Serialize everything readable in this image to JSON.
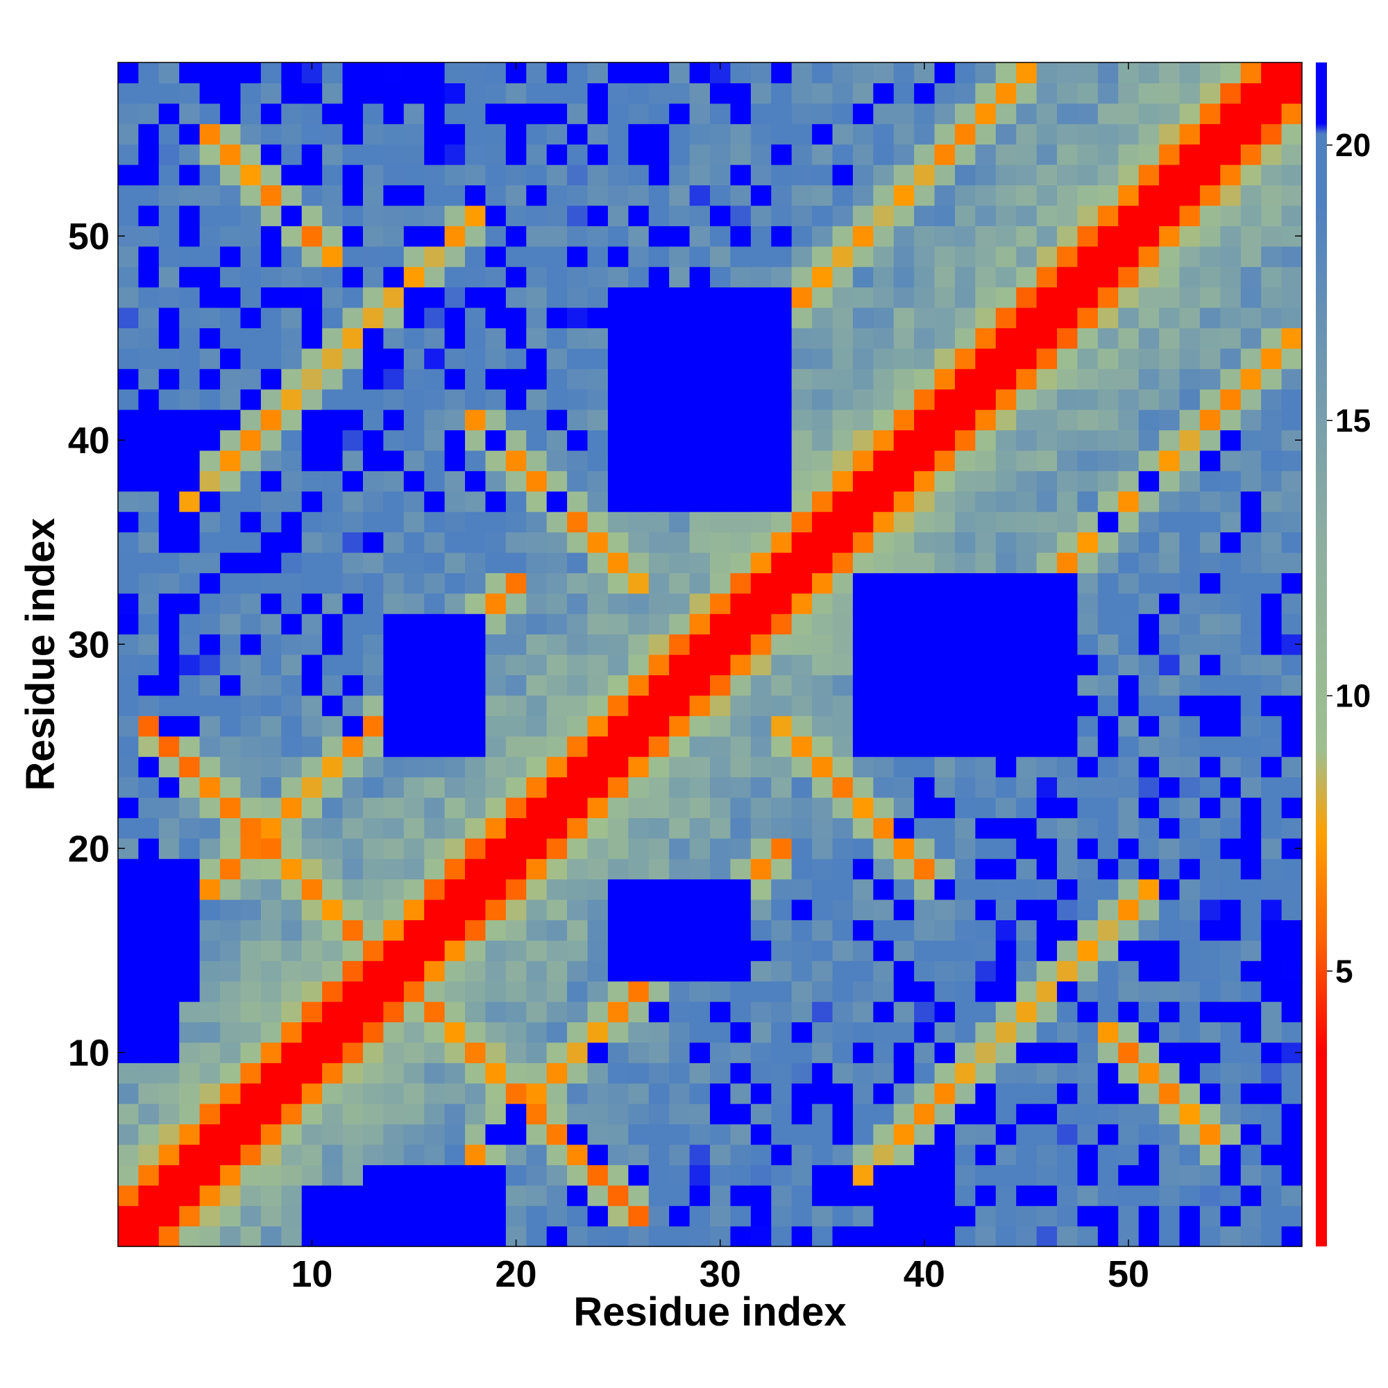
{
  "chart_data": {
    "type": "heatmap",
    "title": "",
    "xlabel": "Residue index",
    "ylabel": "Residue index",
    "n_residues": 58,
    "xlim": [
      0.5,
      58.5
    ],
    "ylim": [
      0.5,
      58.5
    ],
    "x_ticks": [
      10,
      20,
      30,
      40,
      50
    ],
    "y_ticks": [
      10,
      20,
      30,
      40,
      50
    ],
    "colorbar": {
      "range": [
        0,
        21.5
      ],
      "ticks": [
        5,
        10,
        15,
        20
      ],
      "stops": [
        {
          "value": 0,
          "color": "#ff0000"
        },
        {
          "value": 3.5,
          "color": "#ff0000"
        },
        {
          "value": 5.5,
          "color": "#ff6000"
        },
        {
          "value": 7.5,
          "color": "#ffa000"
        },
        {
          "value": 9,
          "color": "#9fbf8f"
        },
        {
          "value": 12.5,
          "color": "#8fb09f"
        },
        {
          "value": 16,
          "color": "#6f98b0"
        },
        {
          "value": 19,
          "color": "#4f80c0"
        },
        {
          "value": 20.2,
          "color": "#4f80c0"
        },
        {
          "value": 20.4,
          "color": "#0000ff"
        },
        {
          "value": 21.5,
          "color": "#0000ff"
        }
      ]
    },
    "contact_segments": [
      {
        "i": [
          2,
          12
        ],
        "j": [
          16,
          26
        ],
        "direction": "anti",
        "value": 6.5
      },
      {
        "i": [
          5,
          20
        ],
        "j": [
          18,
          33
        ],
        "direction": "parallel",
        "value": 7.0
      },
      {
        "i": [
          18,
          26
        ],
        "j": [
          33,
          41
        ],
        "direction": "anti",
        "value": 6.8
      },
      {
        "i": [
          4,
          18
        ],
        "j": [
          37,
          51
        ],
        "direction": "parallel",
        "value": 7.5
      },
      {
        "i": [
          30,
          45
        ],
        "j": [
          43,
          58
        ],
        "direction": "parallel",
        "value": 7.5
      },
      {
        "i": [
          5,
          11
        ],
        "j": [
          49,
          55
        ],
        "direction": "anti",
        "value": 7.0
      }
    ],
    "far_blocks": [
      {
        "i": [
          14,
          18
        ],
        "j": [
          25,
          31
        ]
      },
      {
        "i": [
          36,
          41
        ],
        "j": [
          25,
          31
        ]
      },
      {
        "i": [
          25,
          33
        ],
        "j": [
          13,
          19
        ]
      },
      {
        "i": [
          25,
          33
        ],
        "j": [
          37,
          47
        ]
      },
      {
        "i": [
          1,
          4
        ],
        "j": [
          13,
          19
        ]
      },
      {
        "i": [
          1,
          4
        ],
        "j": [
          38,
          41
        ]
      },
      {
        "i": [
          14,
          19
        ],
        "j": [
          1,
          8
        ]
      },
      {
        "i": [
          1,
          3
        ],
        "j": [
          10,
          18
        ]
      }
    ]
  }
}
